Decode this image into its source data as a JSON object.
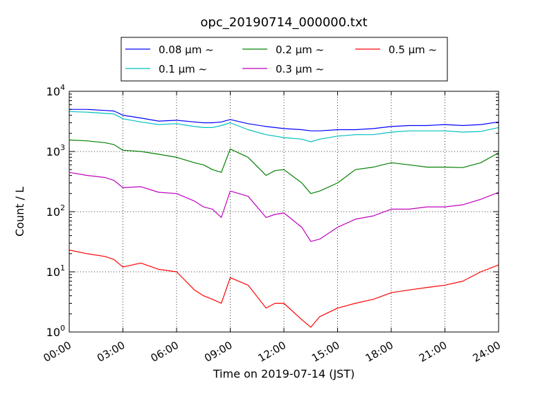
{
  "chart_data": {
    "type": "line",
    "title": "opc_20190714_000000.txt",
    "xlabel": "Time on 2019-07-14 (JST)",
    "ylabel": "Count / L",
    "yscale": "log",
    "xlim": [
      "00:00",
      "24:00"
    ],
    "ylim": [
      1,
      10000
    ],
    "grid": true,
    "legend_placement": "top-center, outside plot",
    "x_ticks": [
      "00:00",
      "03:00",
      "06:00",
      "09:00",
      "12:00",
      "15:00",
      "18:00",
      "21:00",
      "24:00"
    ],
    "y_ticks": [
      {
        "base": "10",
        "exp": "0",
        "value": 1
      },
      {
        "base": "10",
        "exp": "1",
        "value": 10
      },
      {
        "base": "10",
        "exp": "2",
        "value": 100
      },
      {
        "base": "10",
        "exp": "3",
        "value": 1000
      },
      {
        "base": "10",
        "exp": "4",
        "value": 10000
      }
    ],
    "x_hours": [
      0,
      1,
      2,
      2.5,
      3,
      4,
      5,
      6,
      7,
      7.5,
      8,
      8.5,
      9,
      10,
      11,
      11.5,
      12,
      13,
      13.5,
      14,
      15,
      16,
      17,
      18,
      19,
      20,
      21,
      22,
      23,
      24
    ],
    "series": [
      {
        "name": "0.08 μm ~",
        "color": "#0000ff",
        "values": [
          5000,
          5000,
          4800,
          4700,
          4000,
          3600,
          3200,
          3300,
          3100,
          3000,
          3000,
          3100,
          3400,
          2900,
          2600,
          2500,
          2400,
          2300,
          2200,
          2200,
          2300,
          2300,
          2400,
          2600,
          2700,
          2700,
          2800,
          2700,
          2800,
          3100
        ]
      },
      {
        "name": "0.1 μm ~",
        "color": "#00bfbf",
        "values": [
          4600,
          4500,
          4300,
          4200,
          3500,
          3100,
          2800,
          2900,
          2600,
          2500,
          2500,
          2700,
          3000,
          2300,
          1900,
          1800,
          1700,
          1600,
          1450,
          1600,
          1800,
          1900,
          1900,
          2100,
          2200,
          2200,
          2200,
          2100,
          2150,
          2500
        ]
      },
      {
        "name": "0.2 μm ~",
        "color": "#008000",
        "values": [
          1550,
          1500,
          1400,
          1300,
          1050,
          1000,
          900,
          800,
          650,
          600,
          500,
          450,
          1100,
          800,
          400,
          480,
          500,
          300,
          200,
          220,
          300,
          500,
          550,
          650,
          600,
          550,
          550,
          540,
          650,
          950
        ]
      },
      {
        "name": "0.3 μm ~",
        "color": "#bf00bf",
        "values": [
          450,
          400,
          370,
          330,
          250,
          260,
          210,
          200,
          150,
          120,
          110,
          80,
          220,
          180,
          80,
          90,
          95,
          55,
          32,
          35,
          55,
          75,
          85,
          110,
          110,
          120,
          120,
          130,
          160,
          210
        ]
      },
      {
        "name": "0.5 μm ~",
        "color": "#ff0000",
        "values": [
          23,
          20,
          18,
          16,
          12,
          14,
          11,
          10,
          5,
          4,
          3.5,
          3,
          8,
          6,
          2.5,
          3,
          3,
          1.6,
          1.2,
          1.8,
          2.5,
          3,
          3.5,
          4.5,
          5,
          5.5,
          6,
          7,
          10,
          13
        ]
      }
    ]
  }
}
